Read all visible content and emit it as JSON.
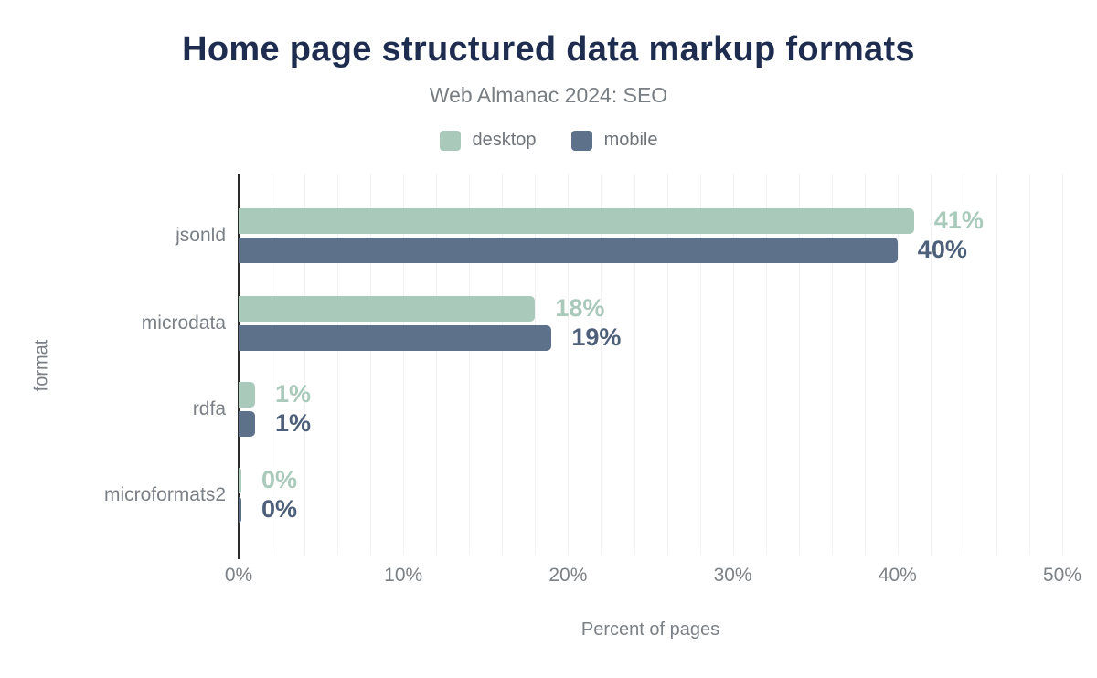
{
  "title": "Home page structured data markup formats",
  "subtitle": "Web Almanac 2024: SEO",
  "legend": {
    "items": [
      {
        "label": "desktop",
        "color": "#a9c9bb"
      },
      {
        "label": "mobile",
        "color": "#5e718b"
      }
    ]
  },
  "chart_data": {
    "type": "bar",
    "orientation": "horizontal",
    "title": "Home page structured data markup formats",
    "subtitle": "Web Almanac 2024: SEO",
    "categories": [
      "jsonld",
      "microdata",
      "rdfa",
      "microformats2"
    ],
    "series": [
      {
        "name": "desktop",
        "color": "#a9c9bb",
        "label_color": "#a9c9bb",
        "values": [
          41,
          18,
          1,
          0
        ],
        "labels": [
          "41%",
          "18%",
          "1%",
          "0%"
        ]
      },
      {
        "name": "mobile",
        "color": "#5e718b",
        "label_color": "#4e5f7a",
        "values": [
          40,
          19,
          1,
          0
        ],
        "labels": [
          "40%",
          "19%",
          "1%",
          "0%"
        ]
      }
    ],
    "xlabel": "Percent of pages",
    "ylabel": "format",
    "xlim": [
      0,
      50
    ],
    "x_ticks": [
      "0%",
      "10%",
      "20%",
      "30%",
      "40%",
      "50%"
    ],
    "grid": {
      "show": true,
      "interval_percent": 2,
      "color": "#f2f2f2"
    },
    "legend_position": "top"
  },
  "colors": {
    "title": "#1e2d4f",
    "axis_text": "#7b8086",
    "axis_line": "#2b2b2b",
    "background": "#ffffff"
  }
}
